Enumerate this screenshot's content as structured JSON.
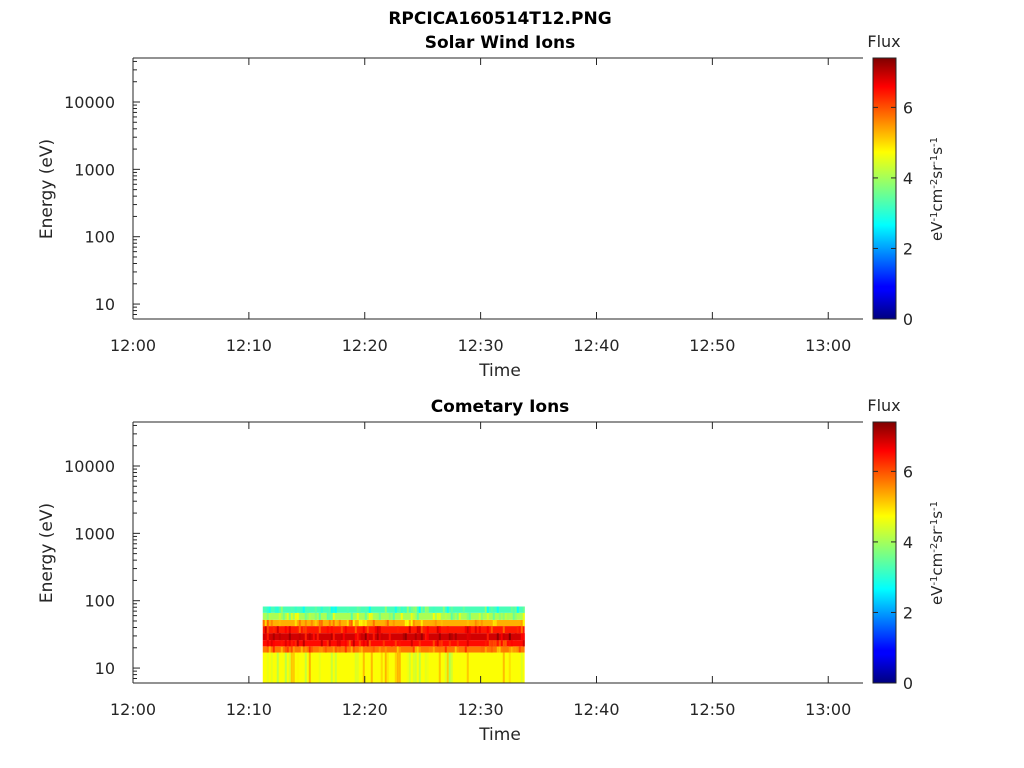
{
  "figure": {
    "title": "RPCICA160514T12.PNG"
  },
  "chart_data": [
    {
      "type": "heatmap",
      "title": "Solar Wind Ions",
      "xlabel": "Time",
      "ylabel": "Energy (eV)",
      "x_ticks": [
        "12:00",
        "12:10",
        "12:20",
        "12:30",
        "12:40",
        "12:50",
        "13:00"
      ],
      "x_range_minutes": [
        0,
        63
      ],
      "y_scale": "log",
      "y_ticks": [
        "10",
        "100",
        "1000",
        "10000"
      ],
      "ylim": [
        6,
        45000
      ],
      "colorbar": {
        "label": "Flux",
        "unit_label": "eV-1cm-2sr-1s-1",
        "ticks": [
          "0",
          "2",
          "4",
          "6"
        ],
        "range": [
          0,
          7.4
        ]
      },
      "data_regions": []
    },
    {
      "type": "heatmap",
      "title": "Cometary Ions",
      "xlabel": "Time",
      "ylabel": "Energy (eV)",
      "x_ticks": [
        "12:00",
        "12:10",
        "12:20",
        "12:30",
        "12:40",
        "12:50",
        "13:00"
      ],
      "x_range_minutes": [
        0,
        63
      ],
      "y_scale": "log",
      "y_ticks": [
        "10",
        "100",
        "1000",
        "10000"
      ],
      "ylim": [
        6,
        45000
      ],
      "colorbar": {
        "label": "Flux",
        "unit_label": "eV-1cm-2sr-1s-1",
        "ticks": [
          "0",
          "2",
          "4",
          "6"
        ],
        "range": [
          0,
          7.4
        ]
      },
      "data_regions": [
        {
          "time_start_min": 11.2,
          "time_end_min": 33.8,
          "energy_min_ev": 6,
          "energy_max_ev": 82,
          "bands": [
            {
              "energy_from_ev": 6,
              "energy_to_ev": 17,
              "flux": 4.6
            },
            {
              "energy_from_ev": 17,
              "energy_to_ev": 21,
              "flux": 5.6
            },
            {
              "energy_from_ev": 21,
              "energy_to_ev": 26,
              "flux": 6.4
            },
            {
              "energy_from_ev": 26,
              "energy_to_ev": 33,
              "flux": 6.8
            },
            {
              "energy_from_ev": 33,
              "energy_to_ev": 42,
              "flux": 6.3
            },
            {
              "energy_from_ev": 42,
              "energy_to_ev": 52,
              "flux": 5.2
            },
            {
              "energy_from_ev": 52,
              "energy_to_ev": 66,
              "flux": 4.0
            },
            {
              "energy_from_ev": 66,
              "energy_to_ev": 82,
              "flux": 3.3
            }
          ]
        }
      ]
    }
  ]
}
